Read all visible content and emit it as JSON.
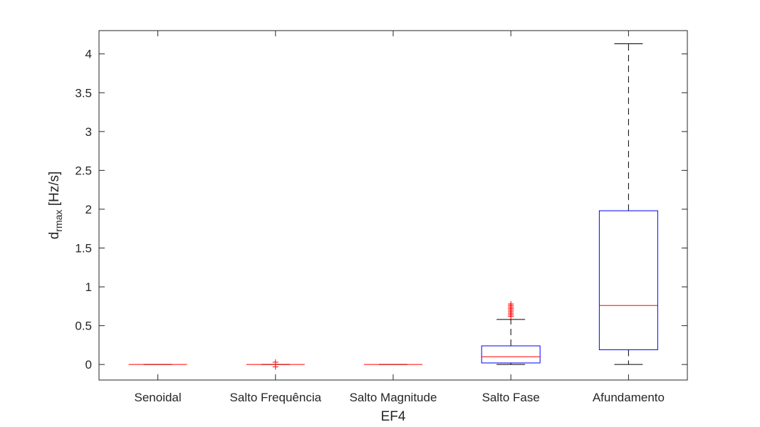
{
  "chart_data": {
    "type": "box",
    "xlabel": "EF4",
    "ylabel": {
      "main": "d",
      "subscript": "rmax",
      "unit": " [Hz/s]"
    },
    "ylim": [
      -0.2,
      4.3
    ],
    "yticks": [
      0,
      0.5,
      1,
      1.5,
      2,
      2.5,
      3,
      3.5,
      4
    ],
    "ytick_labels": [
      "0",
      "0.5",
      "1",
      "1.5",
      "2",
      "2.5",
      "3",
      "3.5",
      "4"
    ],
    "categories": [
      "Senoidal",
      "Salto Frequência",
      "Salto Magnitude",
      "Salto Fase",
      "Afundamento"
    ],
    "boxes": [
      {
        "category": "Senoidal",
        "q1": 0,
        "median": 0,
        "q3": 0,
        "whisker_low": 0,
        "whisker_high": 0,
        "outliers": []
      },
      {
        "category": "Salto Frequência",
        "q1": 0,
        "median": 0,
        "q3": 0,
        "whisker_low": 0,
        "whisker_high": 0,
        "outliers": [
          -0.03,
          0.03
        ]
      },
      {
        "category": "Salto Magnitude",
        "q1": 0,
        "median": 0,
        "q3": 0,
        "whisker_low": 0,
        "whisker_high": 0,
        "outliers": []
      },
      {
        "category": "Salto Fase",
        "q1": 0.02,
        "median": 0.1,
        "q3": 0.24,
        "whisker_low": 0,
        "whisker_high": 0.58,
        "outliers": [
          0.62,
          0.64,
          0.66,
          0.68,
          0.7,
          0.72,
          0.74,
          0.76,
          0.78
        ]
      },
      {
        "category": "Afundamento",
        "q1": 0.19,
        "median": 0.76,
        "q3": 1.98,
        "whisker_low": 0,
        "whisker_high": 4.13,
        "outliers": []
      }
    ],
    "grid": false,
    "legend": "none",
    "colors": {
      "box": "#0000ff",
      "median": "#ff0000",
      "whisker": "#000000",
      "outlier": "#ff0000",
      "axis": "#262626"
    }
  }
}
